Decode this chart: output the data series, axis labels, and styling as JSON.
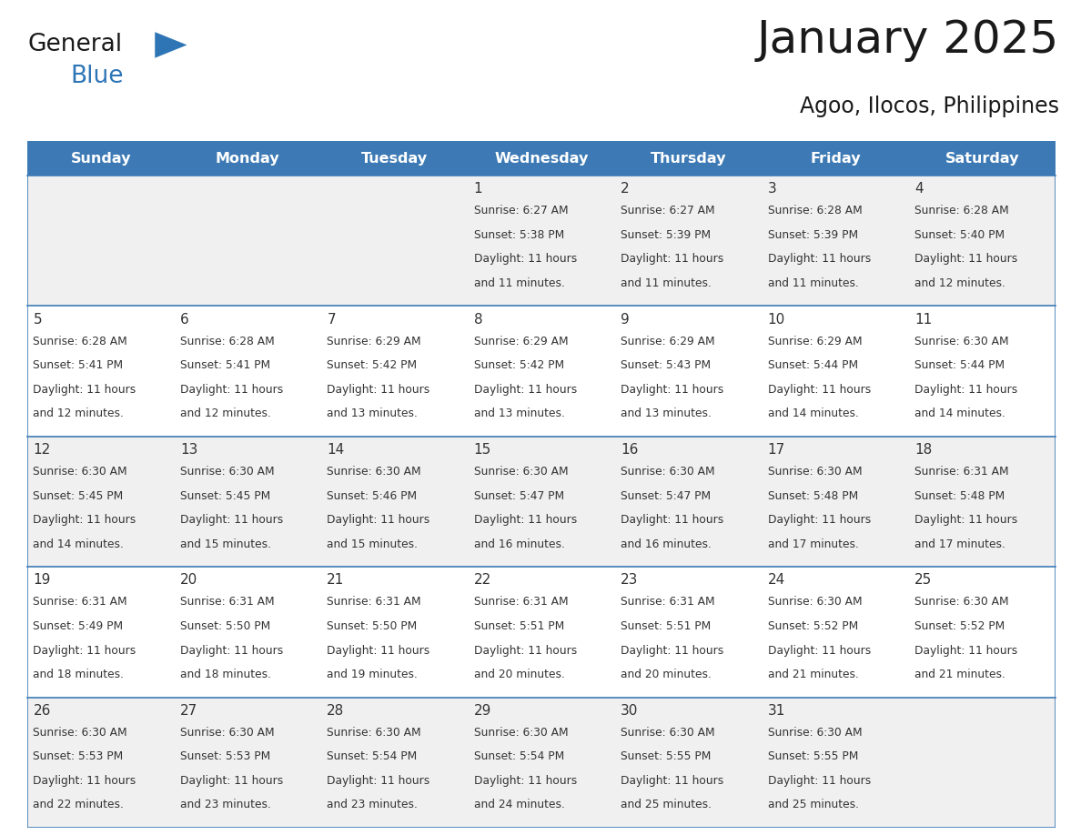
{
  "title": "January 2025",
  "subtitle": "Agoo, Ilocos, Philippines",
  "days_of_week": [
    "Sunday",
    "Monday",
    "Tuesday",
    "Wednesday",
    "Thursday",
    "Friday",
    "Saturday"
  ],
  "header_bg": "#3d7ab5",
  "header_text_color": "#FFFFFF",
  "row0_bg": "#f0f0f0",
  "row1_bg": "#FFFFFF",
  "border_color": "#3d7ab5",
  "text_color": "#333333",
  "title_color": "#1a1a1a",
  "subtitle_color": "#1a1a1a",
  "logo_general_color": "#1a1a1a",
  "logo_blue_color": "#2E75B6",
  "logo_triangle_color": "#2E75B6",
  "calendar_data": [
    [
      null,
      null,
      null,
      {
        "day": 1,
        "sunrise": "6:27 AM",
        "sunset": "5:38 PM",
        "daylight_hours": 11,
        "daylight_minutes": 11
      },
      {
        "day": 2,
        "sunrise": "6:27 AM",
        "sunset": "5:39 PM",
        "daylight_hours": 11,
        "daylight_minutes": 11
      },
      {
        "day": 3,
        "sunrise": "6:28 AM",
        "sunset": "5:39 PM",
        "daylight_hours": 11,
        "daylight_minutes": 11
      },
      {
        "day": 4,
        "sunrise": "6:28 AM",
        "sunset": "5:40 PM",
        "daylight_hours": 11,
        "daylight_minutes": 12
      }
    ],
    [
      {
        "day": 5,
        "sunrise": "6:28 AM",
        "sunset": "5:41 PM",
        "daylight_hours": 11,
        "daylight_minutes": 12
      },
      {
        "day": 6,
        "sunrise": "6:28 AM",
        "sunset": "5:41 PM",
        "daylight_hours": 11,
        "daylight_minutes": 12
      },
      {
        "day": 7,
        "sunrise": "6:29 AM",
        "sunset": "5:42 PM",
        "daylight_hours": 11,
        "daylight_minutes": 13
      },
      {
        "day": 8,
        "sunrise": "6:29 AM",
        "sunset": "5:42 PM",
        "daylight_hours": 11,
        "daylight_minutes": 13
      },
      {
        "day": 9,
        "sunrise": "6:29 AM",
        "sunset": "5:43 PM",
        "daylight_hours": 11,
        "daylight_minutes": 13
      },
      {
        "day": 10,
        "sunrise": "6:29 AM",
        "sunset": "5:44 PM",
        "daylight_hours": 11,
        "daylight_minutes": 14
      },
      {
        "day": 11,
        "sunrise": "6:30 AM",
        "sunset": "5:44 PM",
        "daylight_hours": 11,
        "daylight_minutes": 14
      }
    ],
    [
      {
        "day": 12,
        "sunrise": "6:30 AM",
        "sunset": "5:45 PM",
        "daylight_hours": 11,
        "daylight_minutes": 14
      },
      {
        "day": 13,
        "sunrise": "6:30 AM",
        "sunset": "5:45 PM",
        "daylight_hours": 11,
        "daylight_minutes": 15
      },
      {
        "day": 14,
        "sunrise": "6:30 AM",
        "sunset": "5:46 PM",
        "daylight_hours": 11,
        "daylight_minutes": 15
      },
      {
        "day": 15,
        "sunrise": "6:30 AM",
        "sunset": "5:47 PM",
        "daylight_hours": 11,
        "daylight_minutes": 16
      },
      {
        "day": 16,
        "sunrise": "6:30 AM",
        "sunset": "5:47 PM",
        "daylight_hours": 11,
        "daylight_minutes": 16
      },
      {
        "day": 17,
        "sunrise": "6:30 AM",
        "sunset": "5:48 PM",
        "daylight_hours": 11,
        "daylight_minutes": 17
      },
      {
        "day": 18,
        "sunrise": "6:31 AM",
        "sunset": "5:48 PM",
        "daylight_hours": 11,
        "daylight_minutes": 17
      }
    ],
    [
      {
        "day": 19,
        "sunrise": "6:31 AM",
        "sunset": "5:49 PM",
        "daylight_hours": 11,
        "daylight_minutes": 18
      },
      {
        "day": 20,
        "sunrise": "6:31 AM",
        "sunset": "5:50 PM",
        "daylight_hours": 11,
        "daylight_minutes": 18
      },
      {
        "day": 21,
        "sunrise": "6:31 AM",
        "sunset": "5:50 PM",
        "daylight_hours": 11,
        "daylight_minutes": 19
      },
      {
        "day": 22,
        "sunrise": "6:31 AM",
        "sunset": "5:51 PM",
        "daylight_hours": 11,
        "daylight_minutes": 20
      },
      {
        "day": 23,
        "sunrise": "6:31 AM",
        "sunset": "5:51 PM",
        "daylight_hours": 11,
        "daylight_minutes": 20
      },
      {
        "day": 24,
        "sunrise": "6:30 AM",
        "sunset": "5:52 PM",
        "daylight_hours": 11,
        "daylight_minutes": 21
      },
      {
        "day": 25,
        "sunrise": "6:30 AM",
        "sunset": "5:52 PM",
        "daylight_hours": 11,
        "daylight_minutes": 21
      }
    ],
    [
      {
        "day": 26,
        "sunrise": "6:30 AM",
        "sunset": "5:53 PM",
        "daylight_hours": 11,
        "daylight_minutes": 22
      },
      {
        "day": 27,
        "sunrise": "6:30 AM",
        "sunset": "5:53 PM",
        "daylight_hours": 11,
        "daylight_minutes": 23
      },
      {
        "day": 28,
        "sunrise": "6:30 AM",
        "sunset": "5:54 PM",
        "daylight_hours": 11,
        "daylight_minutes": 23
      },
      {
        "day": 29,
        "sunrise": "6:30 AM",
        "sunset": "5:54 PM",
        "daylight_hours": 11,
        "daylight_minutes": 24
      },
      {
        "day": 30,
        "sunrise": "6:30 AM",
        "sunset": "5:55 PM",
        "daylight_hours": 11,
        "daylight_minutes": 25
      },
      {
        "day": 31,
        "sunrise": "6:30 AM",
        "sunset": "5:55 PM",
        "daylight_hours": 11,
        "daylight_minutes": 25
      },
      null
    ]
  ]
}
